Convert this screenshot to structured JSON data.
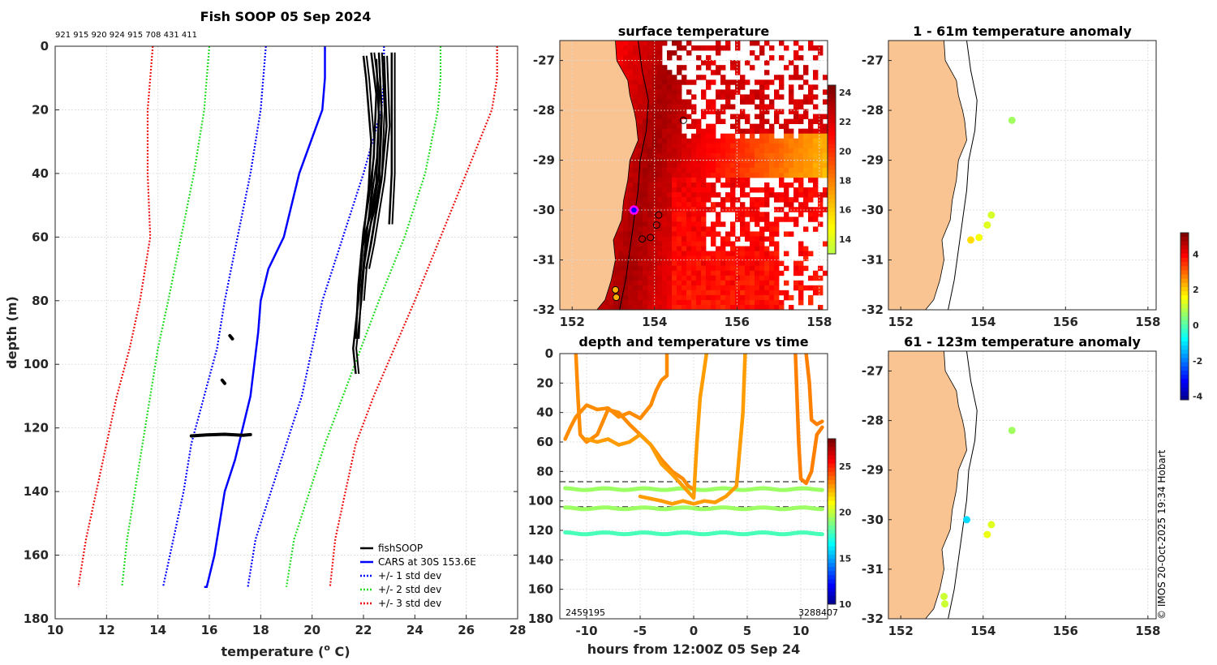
{
  "colors": {
    "land": "#f9c491",
    "fish": "#000000",
    "cars": "#0000ff",
    "sd1": "#0000ff",
    "sd2": "#22dd22",
    "sd3": "#ee1111"
  },
  "chart_data": [
    {
      "id": "profile",
      "type": "line",
      "title": "Fish SOOP 05 Sep 2024",
      "subtitle": "921 915 920 924 915 708 431 411",
      "xlabel": "temperature (",
      "xlabel_sup": "o",
      "xlabel_end": " C)",
      "ylabel": "depth (m)",
      "xlim": [
        10,
        28
      ],
      "ylim": [
        0,
        180
      ],
      "xticks": [
        "10",
        "12",
        "14",
        "16",
        "18",
        "20",
        "22",
        "24",
        "26",
        "28"
      ],
      "yticks": [
        "0",
        "20",
        "40",
        "60",
        "80",
        "100",
        "120",
        "140",
        "160",
        "180"
      ],
      "legend": [
        "fishSOOP",
        "CARS at 30S 153.6E",
        "+/- 1 std dev",
        "+/- 2 std dev",
        "+/- 3 std dev"
      ],
      "cars": {
        "temp": [
          20.5,
          20.5,
          20.4,
          19.5,
          18.9,
          18.3,
          18.0,
          17.9,
          17.6,
          17.0,
          16.6,
          16.2,
          15.9,
          15.8
        ],
        "depth": [
          0,
          10,
          20,
          40,
          60,
          70,
          80,
          90,
          110,
          130,
          140,
          160,
          170,
          170
        ]
      },
      "cars_minus1": {
        "temp": [
          18.2,
          18.1,
          18.0,
          17.6,
          17.1,
          16.6,
          16.3,
          15.8,
          15.3,
          15.0,
          14.6,
          14.2
        ],
        "depth": [
          0,
          10,
          20,
          40,
          60,
          80,
          95,
          110,
          125,
          140,
          155,
          170
        ]
      },
      "cars_plus1": {
        "temp": [
          22.8,
          22.8,
          22.7,
          22.0,
          21.2,
          20.4,
          20.0,
          19.6,
          19.0,
          18.4,
          17.8,
          17.5
        ],
        "depth": [
          0,
          10,
          20,
          40,
          60,
          80,
          95,
          110,
          125,
          140,
          155,
          170
        ]
      },
      "cars_minus2": {
        "temp": [
          16.0,
          15.9,
          15.8,
          15.4,
          14.9,
          14.4,
          14.0,
          13.7,
          13.4,
          13.1,
          12.8,
          12.6
        ],
        "depth": [
          0,
          10,
          20,
          40,
          60,
          80,
          95,
          110,
          125,
          140,
          155,
          170
        ]
      },
      "cars_plus2": {
        "temp": [
          25.0,
          25.0,
          24.9,
          24.4,
          23.6,
          22.6,
          21.9,
          21.2,
          20.5,
          19.9,
          19.3,
          19.0
        ],
        "depth": [
          0,
          10,
          20,
          40,
          60,
          80,
          95,
          110,
          125,
          140,
          155,
          170
        ]
      },
      "cars_minus3": {
        "temp": [
          13.8,
          13.7,
          13.6,
          13.6,
          13.7,
          13.3,
          12.9,
          12.4,
          12.0,
          11.6,
          11.2,
          10.9
        ],
        "depth": [
          0,
          10,
          20,
          40,
          60,
          80,
          95,
          110,
          125,
          140,
          155,
          170
        ]
      },
      "cars_plus3": {
        "temp": [
          27.2,
          27.2,
          27.0,
          26.0,
          25.0,
          24.0,
          23.2,
          22.4,
          21.7,
          21.3,
          20.9,
          20.7
        ],
        "depth": [
          0,
          10,
          20,
          40,
          60,
          80,
          95,
          110,
          125,
          140,
          155,
          170
        ]
      },
      "fish_profiles": [
        {
          "temp": [
            22.0,
            22.1,
            22.3,
            22.2,
            22.0,
            21.8,
            21.6,
            21.7
          ],
          "depth": [
            3,
            10,
            30,
            45,
            60,
            80,
            95,
            103
          ]
        },
        {
          "temp": [
            22.3,
            22.5,
            22.4,
            22.2,
            22.0,
            21.8,
            21.7
          ],
          "depth": [
            2,
            15,
            35,
            48,
            58,
            75,
            92
          ]
        },
        {
          "temp": [
            22.6,
            22.7,
            22.6,
            22.4,
            22.2,
            22.0,
            21.9
          ],
          "depth": [
            2,
            20,
            40,
            50,
            60,
            70,
            80
          ]
        },
        {
          "temp": [
            22.8,
            22.9,
            22.7,
            22.5,
            22.3,
            22.1
          ],
          "depth": [
            3,
            25,
            42,
            52,
            62,
            70
          ]
        },
        {
          "temp": [
            23.1,
            23.1,
            23.1,
            23.0
          ],
          "depth": [
            2,
            20,
            40,
            56
          ]
        },
        {
          "temp": [
            22.5,
            22.6,
            22.5,
            22.3,
            22.1,
            21.9
          ],
          "depth": [
            4,
            22,
            43,
            52,
            58,
            66
          ]
        }
      ],
      "fish_blobs": [
        {
          "temp": [
            15.3,
            15.9,
            16.6,
            17.3,
            17.6
          ],
          "depth": [
            122.5,
            122.2,
            122.0,
            122.3,
            122.1
          ]
        },
        {
          "temp": [
            16.8,
            16.9
          ],
          "depth": [
            91,
            92
          ]
        },
        {
          "temp": [
            16.5,
            16.6
          ],
          "depth": [
            105,
            106
          ]
        }
      ]
    },
    {
      "id": "sst",
      "type": "heatmap",
      "title": "surface temperature",
      "xlim": [
        151.7,
        158.2
      ],
      "ylim": [
        -32,
        -26.6
      ],
      "xticks": [
        "152",
        "154",
        "156",
        "158"
      ],
      "yticks": [
        "-27",
        "-28",
        "-29",
        "-30",
        "-31",
        "-32"
      ],
      "colorbar": {
        "min": 13,
        "max": 24.5,
        "ticks": [
          "14",
          "16",
          "18",
          "20",
          "22",
          "24"
        ]
      },
      "stations": [
        {
          "lon": 154.7,
          "lat": -28.2,
          "temp": null
        },
        {
          "lon": 154.1,
          "lat": -30.1,
          "temp": null
        },
        {
          "lon": 154.05,
          "lat": -30.3,
          "temp": null
        },
        {
          "lon": 153.9,
          "lat": -30.55,
          "temp": null
        },
        {
          "lon": 153.7,
          "lat": -30.58,
          "temp": null
        },
        {
          "lon": 153.05,
          "lat": -31.6,
          "temp": 17
        },
        {
          "lon": 153.07,
          "lat": -31.75,
          "temp": 17
        }
      ],
      "vessel": {
        "lon": 153.5,
        "lat": -30.0
      }
    },
    {
      "id": "timeseries",
      "type": "scatter",
      "title": "depth and temperature vs time",
      "xlabel": "hours from 12:00Z 05 Sep 24",
      "xlim": [
        -12.5,
        12.5
      ],
      "ylim": [
        0,
        180
      ],
      "xticks": [
        "-10",
        "-5",
        "0",
        "5",
        "10"
      ],
      "yticks": [
        "0",
        "20",
        "40",
        "60",
        "80",
        "100",
        "120",
        "140",
        "160",
        "180"
      ],
      "colorbar": {
        "min": 10,
        "max": 28,
        "ticks": [
          "10",
          "15",
          "20",
          "25"
        ]
      },
      "corner_labels": {
        "left": "2459195",
        "right": "3288407"
      },
      "dashed_depths": [
        87,
        104
      ],
      "bottom_tracks": [
        {
          "depth": 92,
          "temp": 19.5
        },
        {
          "depth": 105,
          "temp": 19.5
        },
        {
          "depth": 122,
          "temp": 18.0
        }
      ],
      "traces": [
        {
          "temp": 23.3,
          "t": [
            -12,
            -11.5,
            -11,
            -10,
            -9,
            -8,
            -7,
            -6,
            -5,
            -4,
            -3.5,
            -3,
            -2.5,
            -2.5
          ],
          "d": [
            58,
            50,
            43,
            35,
            38,
            37,
            43,
            40,
            44,
            35,
            25,
            18,
            15,
            0
          ]
        },
        {
          "temp": 23.3,
          "t": [
            -11,
            -10.8,
            -10.6,
            -10,
            -9,
            -8,
            -7,
            -6,
            -5,
            -4,
            -3,
            -2,
            -1,
            -0.5,
            0
          ],
          "d": [
            0,
            30,
            55,
            60,
            55,
            38,
            40,
            48,
            55,
            62,
            72,
            80,
            85,
            90,
            92
          ]
        },
        {
          "temp": 23.0,
          "t": [
            -10,
            -9,
            -8,
            -7,
            -6,
            -5,
            -4,
            -3,
            -2,
            -1,
            0,
            0.3,
            0.6,
            1,
            1.2
          ],
          "d": [
            58,
            60,
            58,
            62,
            60,
            55,
            62,
            75,
            82,
            90,
            98,
            60,
            30,
            10,
            0
          ]
        },
        {
          "temp": 23.0,
          "t": [
            -5,
            -3,
            -2,
            -1,
            0,
            1,
            2,
            3,
            4,
            4.6,
            4.8
          ],
          "d": [
            97,
            100,
            102,
            100,
            102,
            100,
            101,
            97,
            90,
            40,
            0
          ]
        },
        {
          "temp": 23.5,
          "t": [
            9.5,
            9.8,
            10,
            10.5,
            11,
            11.5,
            12
          ],
          "d": [
            0,
            60,
            85,
            88,
            80,
            55,
            50
          ]
        },
        {
          "temp": 23.5,
          "t": [
            10.5,
            10.8,
            11,
            11.5,
            12
          ],
          "d": [
            0,
            20,
            45,
            48,
            46
          ]
        }
      ]
    },
    {
      "id": "anom_shallow",
      "type": "scatter",
      "title": "1 - 61m temperature anomaly",
      "xlim": [
        151.7,
        158.2
      ],
      "ylim": [
        -32,
        -26.6
      ],
      "xticks": [
        "152",
        "154",
        "156",
        "158"
      ],
      "yticks": [
        "-27",
        "-28",
        "-29",
        "-30",
        "-31",
        "-32"
      ],
      "points": [
        {
          "lon": 154.7,
          "lat": -28.2,
          "anom": 0.8
        },
        {
          "lon": 154.2,
          "lat": -30.1,
          "anom": 1.3
        },
        {
          "lon": 154.1,
          "lat": -30.3,
          "anom": 1.4
        },
        {
          "lon": 153.9,
          "lat": -30.55,
          "anom": 1.6
        },
        {
          "lon": 153.7,
          "lat": -30.6,
          "anom": 2.0
        }
      ]
    },
    {
      "id": "anom_deep",
      "type": "scatter",
      "title": "61 - 123m temperature anomaly",
      "xlim": [
        151.7,
        158.2
      ],
      "ylim": [
        -32,
        -26.6
      ],
      "xticks": [
        "152",
        "154",
        "156",
        "158"
      ],
      "yticks": [
        "-27",
        "-28",
        "-29",
        "-30",
        "-31",
        "-32"
      ],
      "points": [
        {
          "lon": 154.7,
          "lat": -28.2,
          "anom": 0.8
        },
        {
          "lon": 154.2,
          "lat": -30.1,
          "anom": 1.4
        },
        {
          "lon": 154.1,
          "lat": -30.3,
          "anom": 1.5
        },
        {
          "lon": 153.6,
          "lat": -30.0,
          "anom": -1.0
        },
        {
          "lon": 153.05,
          "lat": -31.55,
          "anom": 1.2
        },
        {
          "lon": 153.07,
          "lat": -31.7,
          "anom": 1.2
        }
      ]
    },
    {
      "id": "anomaly_colorbar",
      "type": "heatmap",
      "min": -4.2,
      "max": 5.2,
      "ticks": [
        "4",
        "2",
        "0",
        "-2",
        "-4"
      ]
    }
  ],
  "credit": "© IMOS 20-Oct-2025 19:34 Hobart"
}
